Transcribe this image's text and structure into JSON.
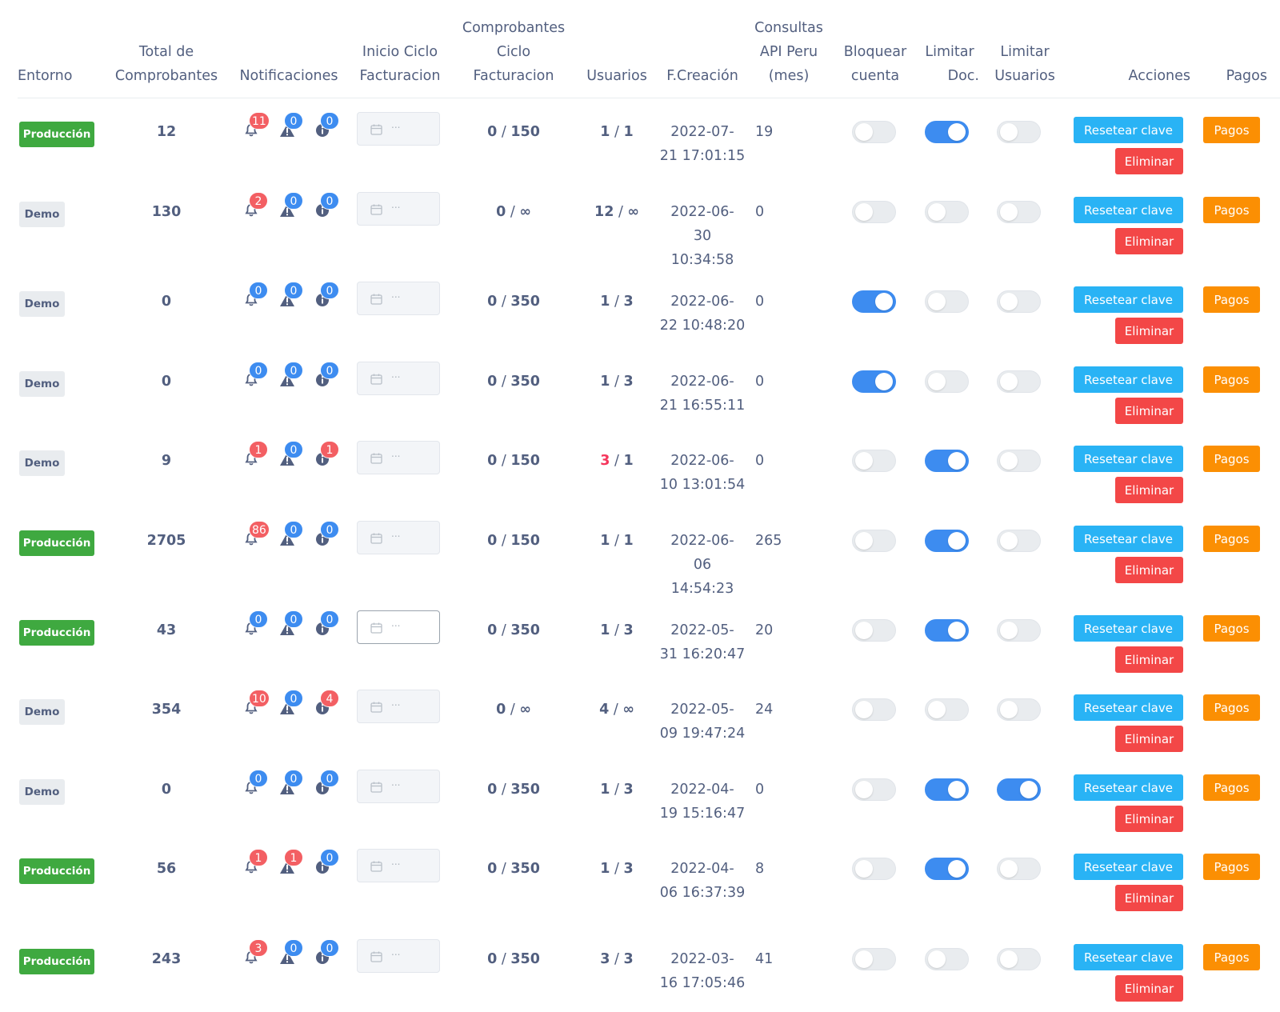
{
  "headers": {
    "entorno": [
      "Entorno"
    ],
    "total": [
      "Total de",
      "Comprobantes"
    ],
    "notificaciones": [
      "Notificaciones"
    ],
    "inicio": [
      "Inicio Ciclo",
      "Facturacion"
    ],
    "comprobantes_ciclo": [
      "Comprobantes",
      "Ciclo",
      "Facturacion"
    ],
    "usuarios": [
      "Usuarios"
    ],
    "fcreacion": [
      "F.Creación"
    ],
    "consultas": [
      "Consultas",
      "API Peru",
      "(mes)"
    ],
    "bloquear": [
      "Bloquear",
      "cuenta"
    ],
    "limitar_doc": [
      "Limitar",
      "Doc."
    ],
    "limitar_usuarios": [
      "Limitar",
      "Usuarios"
    ],
    "acciones": [
      "Acciones"
    ],
    "pagos": [
      "Pagos"
    ]
  },
  "labels": {
    "reset": "Resetear clave",
    "delete": "Eliminar",
    "pay": "Pagos",
    "date_placeholder": "..."
  },
  "colors": {
    "produccion": "#3fa940",
    "demo": "#e9ecef",
    "toggle_on": "#3d8cf0",
    "reset_button": "#29b3f5",
    "delete_button": "#f34747",
    "pay_button": "#fb8f03",
    "badge_blue": "#3d8cf0",
    "badge_red": "#f35f63"
  },
  "icons": {
    "notifications": [
      "bell-icon",
      "warning-icon",
      "info-icon"
    ],
    "date": "calendar-icon"
  },
  "rows": [
    {
      "entorno": "Producción",
      "env": "prod",
      "total": "12",
      "notif": [
        "11",
        "0",
        "0"
      ],
      "notif_color": [
        "red",
        "blue",
        "blue"
      ],
      "comp_used": "0",
      "comp_limit": "150",
      "users_used": "1",
      "users_limit": "1",
      "users_over": false,
      "date": [
        "2022-07-",
        "21 17:01:15"
      ],
      "api": "19",
      "bloquear": false,
      "limitar_doc": true,
      "limitar_usuarios": false,
      "date_focus": false
    },
    {
      "entorno": "Demo",
      "env": "demo",
      "total": "130",
      "notif": [
        "2",
        "0",
        "0"
      ],
      "notif_color": [
        "red",
        "blue",
        "blue"
      ],
      "comp_used": "0",
      "comp_limit": "∞",
      "users_used": "12",
      "users_limit": "∞",
      "users_over": false,
      "date": [
        "2022-06-",
        "30",
        "10:34:58"
      ],
      "api": "0",
      "bloquear": false,
      "limitar_doc": false,
      "limitar_usuarios": false,
      "date_focus": false
    },
    {
      "entorno": "Demo",
      "env": "demo",
      "total": "0",
      "notif": [
        "0",
        "0",
        "0"
      ],
      "notif_color": [
        "blue",
        "blue",
        "blue"
      ],
      "comp_used": "0",
      "comp_limit": "350",
      "users_used": "1",
      "users_limit": "3",
      "users_over": false,
      "date": [
        "2022-06-",
        "22 10:48:20"
      ],
      "api": "0",
      "bloquear": true,
      "limitar_doc": false,
      "limitar_usuarios": false,
      "date_focus": false
    },
    {
      "entorno": "Demo",
      "env": "demo",
      "total": "0",
      "notif": [
        "0",
        "0",
        "0"
      ],
      "notif_color": [
        "blue",
        "blue",
        "blue"
      ],
      "comp_used": "0",
      "comp_limit": "350",
      "users_used": "1",
      "users_limit": "3",
      "users_over": false,
      "date": [
        "2022-06-",
        "21 16:55:11"
      ],
      "api": "0",
      "bloquear": true,
      "limitar_doc": false,
      "limitar_usuarios": false,
      "date_focus": false
    },
    {
      "entorno": "Demo",
      "env": "demo",
      "total": "9",
      "notif": [
        "1",
        "0",
        "1"
      ],
      "notif_color": [
        "red",
        "blue",
        "red"
      ],
      "comp_used": "0",
      "comp_limit": "150",
      "users_used": "3",
      "users_limit": "1",
      "users_over": true,
      "date": [
        "2022-06-",
        "10 13:01:54"
      ],
      "api": "0",
      "bloquear": false,
      "limitar_doc": true,
      "limitar_usuarios": false,
      "date_focus": false
    },
    {
      "entorno": "Producción",
      "env": "prod",
      "total": "2705",
      "notif": [
        "86",
        "0",
        "0"
      ],
      "notif_color": [
        "red",
        "blue",
        "blue"
      ],
      "comp_used": "0",
      "comp_limit": "150",
      "users_used": "1",
      "users_limit": "1",
      "users_over": false,
      "date": [
        "2022-06-",
        "06",
        "14:54:23"
      ],
      "api": "265",
      "bloquear": false,
      "limitar_doc": true,
      "limitar_usuarios": false,
      "date_focus": false
    },
    {
      "entorno": "Producción",
      "env": "prod",
      "total": "43",
      "notif": [
        "0",
        "0",
        "0"
      ],
      "notif_color": [
        "blue",
        "blue",
        "blue"
      ],
      "comp_used": "0",
      "comp_limit": "350",
      "users_used": "1",
      "users_limit": "3",
      "users_over": false,
      "date": [
        "2022-05-",
        "31 16:20:47"
      ],
      "api": "20",
      "bloquear": false,
      "limitar_doc": true,
      "limitar_usuarios": false,
      "date_focus": true
    },
    {
      "entorno": "Demo",
      "env": "demo",
      "total": "354",
      "notif": [
        "10",
        "0",
        "4"
      ],
      "notif_color": [
        "red",
        "blue",
        "red"
      ],
      "comp_used": "0",
      "comp_limit": "∞",
      "users_used": "4",
      "users_limit": "∞",
      "users_over": false,
      "date": [
        "2022-05-",
        "09 19:47:24"
      ],
      "api": "24",
      "bloquear": false,
      "limitar_doc": false,
      "limitar_usuarios": false,
      "date_focus": false
    },
    {
      "entorno": "Demo",
      "env": "demo",
      "total": "0",
      "notif": [
        "0",
        "0",
        "0"
      ],
      "notif_color": [
        "blue",
        "blue",
        "blue"
      ],
      "comp_used": "0",
      "comp_limit": "350",
      "users_used": "1",
      "users_limit": "3",
      "users_over": false,
      "date": [
        "2022-04-",
        "19 15:16:47"
      ],
      "api": "0",
      "bloquear": false,
      "limitar_doc": true,
      "limitar_usuarios": true,
      "date_focus": false
    },
    {
      "entorno": "Producción",
      "env": "prod",
      "total": "56",
      "notif": [
        "1",
        "1",
        "0"
      ],
      "notif_color": [
        "red",
        "red",
        "blue"
      ],
      "comp_used": "0",
      "comp_limit": "350",
      "users_used": "1",
      "users_limit": "3",
      "users_over": false,
      "date": [
        "2022-04-",
        "06 16:37:39"
      ],
      "api": "8",
      "bloquear": false,
      "limitar_doc": true,
      "limitar_usuarios": false,
      "date_focus": false
    },
    {
      "entorno": "Producción",
      "env": "prod",
      "total": "243",
      "notif": [
        "3",
        "0",
        "0"
      ],
      "notif_color": [
        "red",
        "blue",
        "blue"
      ],
      "comp_used": "0",
      "comp_limit": "350",
      "users_used": "3",
      "users_limit": "3",
      "users_over": false,
      "date": [
        "2022-03-",
        "16 17:05:46"
      ],
      "api": "41",
      "bloquear": false,
      "limitar_doc": false,
      "limitar_usuarios": false,
      "date_focus": false
    }
  ]
}
